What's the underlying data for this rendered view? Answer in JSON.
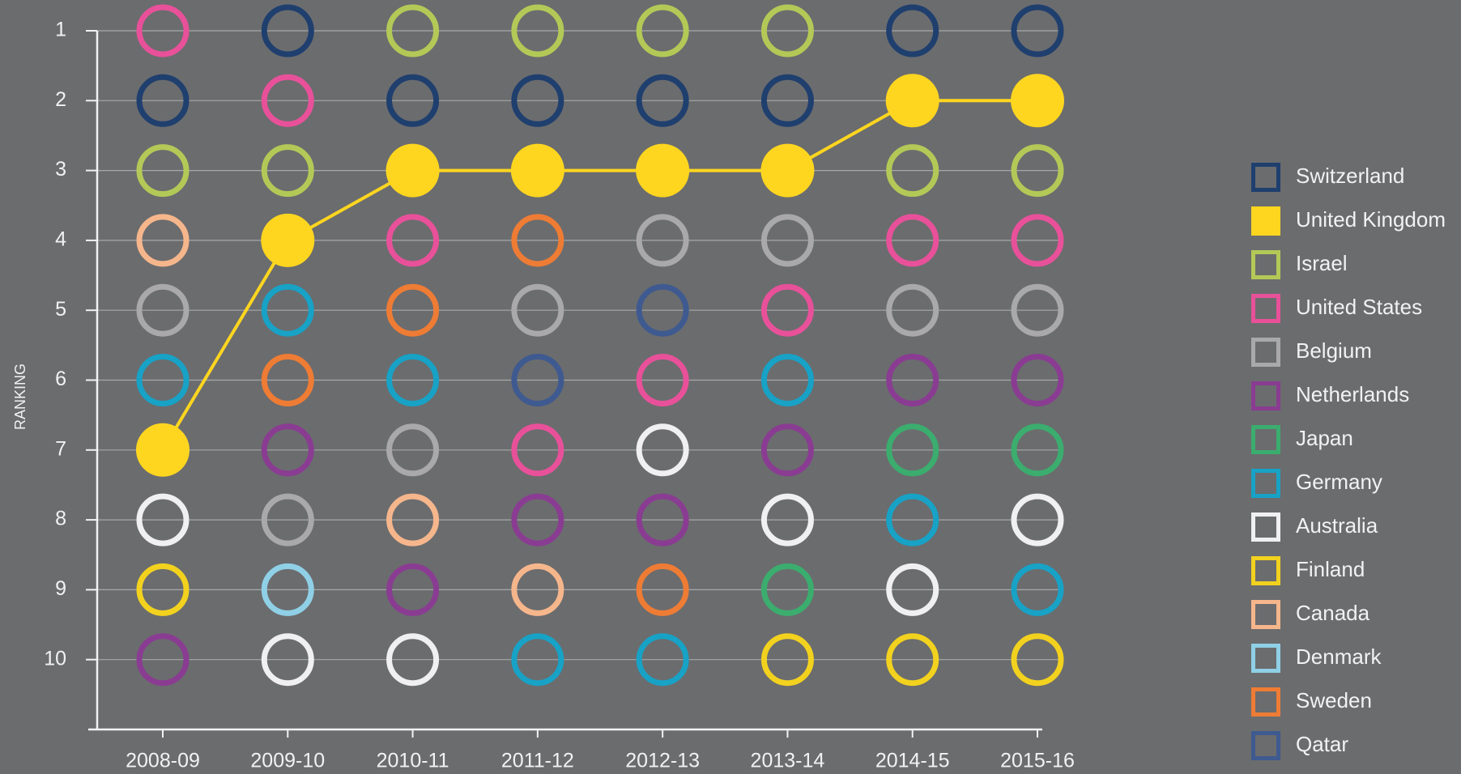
{
  "chart_data": {
    "type": "ranking",
    "y_label": "RANKING",
    "categories": [
      "2008-09",
      "2009-10",
      "2010-11",
      "2011-12",
      "2012-13",
      "2013-14",
      "2014-15",
      "2015-16"
    ],
    "ylim": [
      1,
      11
    ],
    "y_inverted": true,
    "yticks": [
      1,
      2,
      3,
      4,
      5,
      6,
      7,
      8,
      9,
      10
    ],
    "grid": true,
    "legend": "right",
    "series": [
      {
        "name": "Switzerland",
        "color": "#1f3f6e",
        "values": [
          2,
          1,
          2,
          2,
          2,
          2,
          1,
          1
        ]
      },
      {
        "name": "United Kingdom",
        "color": "#ffd61f",
        "filled": true,
        "connect": true,
        "values": [
          7,
          4,
          3,
          3,
          3,
          3,
          2,
          2
        ]
      },
      {
        "name": "Israel",
        "color": "#b3c957",
        "values": [
          3,
          3,
          1,
          1,
          1,
          1,
          3,
          3
        ]
      },
      {
        "name": "United States",
        "color": "#e8519a",
        "values": [
          1,
          2,
          4,
          7,
          6,
          5,
          4,
          4
        ]
      },
      {
        "name": "Belgium",
        "color": "#a9a9ab",
        "values": [
          5,
          8,
          7,
          5,
          4,
          4,
          5,
          5
        ]
      },
      {
        "name": "Netherlands",
        "color": "#8a3c92",
        "values": [
          10,
          7,
          9,
          8,
          8,
          7,
          6,
          6
        ]
      },
      {
        "name": "Japan",
        "color": "#3bad6e",
        "values": [
          null,
          null,
          null,
          null,
          null,
          9,
          7,
          7
        ]
      },
      {
        "name": "Germany",
        "color": "#17a2c6",
        "values": [
          6,
          5,
          6,
          10,
          10,
          6,
          8,
          9
        ]
      },
      {
        "name": "Australia",
        "color": "#f0f0f2",
        "values": [
          8,
          10,
          10,
          null,
          7,
          8,
          9,
          8
        ]
      },
      {
        "name": "Finland",
        "color": "#f2d21e",
        "values": [
          9,
          null,
          null,
          null,
          null,
          10,
          10,
          10
        ]
      },
      {
        "name": "Canada",
        "color": "#f6b68c",
        "values": [
          4,
          null,
          8,
          9,
          null,
          null,
          null,
          null
        ]
      },
      {
        "name": "Denmark",
        "color": "#8fd0e6",
        "values": [
          null,
          9,
          null,
          null,
          null,
          null,
          null,
          null
        ]
      },
      {
        "name": "Sweden",
        "color": "#ee7c35",
        "values": [
          null,
          6,
          5,
          4,
          9,
          null,
          null,
          null
        ]
      },
      {
        "name": "Qatar",
        "color": "#3e5a90",
        "values": [
          null,
          null,
          null,
          6,
          5,
          null,
          null,
          null
        ]
      }
    ]
  }
}
